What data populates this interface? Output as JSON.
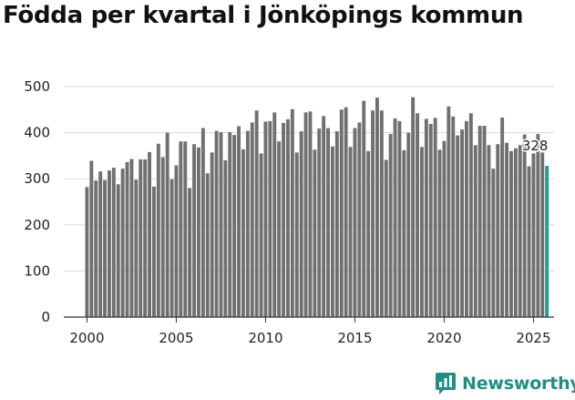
{
  "title": "Födda per kvartal i Jönköpings kommun",
  "brand": {
    "name": "Newsworthy",
    "color": "#1f8f85"
  },
  "chart_data": {
    "type": "bar",
    "title": "Födda per kvartal i Jönköpings kommun",
    "xlabel": "",
    "ylabel": "",
    "ylim": [
      0,
      500
    ],
    "yticks": [
      0,
      100,
      200,
      300,
      400,
      500
    ],
    "xticks": [
      2000,
      2005,
      2010,
      2015,
      2020,
      2025
    ],
    "grid": true,
    "bar_color": "#707070",
    "highlight_color": "#1f9c94",
    "annotation": {
      "label": "328",
      "index": 103
    },
    "categories": [
      "2000Q1",
      "2000Q2",
      "2000Q3",
      "2000Q4",
      "2001Q1",
      "2001Q2",
      "2001Q3",
      "2001Q4",
      "2002Q1",
      "2002Q2",
      "2002Q3",
      "2002Q4",
      "2003Q1",
      "2003Q2",
      "2003Q3",
      "2003Q4",
      "2004Q1",
      "2004Q2",
      "2004Q3",
      "2004Q4",
      "2005Q1",
      "2005Q2",
      "2005Q3",
      "2005Q4",
      "2006Q1",
      "2006Q2",
      "2006Q3",
      "2006Q4",
      "2007Q1",
      "2007Q2",
      "2007Q3",
      "2007Q4",
      "2008Q1",
      "2008Q2",
      "2008Q3",
      "2008Q4",
      "2009Q1",
      "2009Q2",
      "2009Q3",
      "2009Q4",
      "2010Q1",
      "2010Q2",
      "2010Q3",
      "2010Q4",
      "2011Q1",
      "2011Q2",
      "2011Q3",
      "2011Q4",
      "2012Q1",
      "2012Q2",
      "2012Q3",
      "2012Q4",
      "2013Q1",
      "2013Q2",
      "2013Q3",
      "2013Q4",
      "2014Q1",
      "2014Q2",
      "2014Q3",
      "2014Q4",
      "2015Q1",
      "2015Q2",
      "2015Q3",
      "2015Q4",
      "2016Q1",
      "2016Q2",
      "2016Q3",
      "2016Q4",
      "2017Q1",
      "2017Q2",
      "2017Q3",
      "2017Q4",
      "2018Q1",
      "2018Q2",
      "2018Q3",
      "2018Q4",
      "2019Q1",
      "2019Q2",
      "2019Q3",
      "2019Q4",
      "2020Q1",
      "2020Q2",
      "2020Q3",
      "2020Q4",
      "2021Q1",
      "2021Q2",
      "2021Q3",
      "2021Q4",
      "2022Q1",
      "2022Q2",
      "2022Q3",
      "2022Q4",
      "2023Q1",
      "2023Q2",
      "2023Q3",
      "2023Q4",
      "2024Q1",
      "2024Q2",
      "2024Q3",
      "2024Q4",
      "2025Q1",
      "2025Q2",
      "2025Q3",
      "2025Q4"
    ],
    "values": [
      282,
      339,
      296,
      316,
      297,
      318,
      324,
      288,
      322,
      336,
      343,
      298,
      342,
      342,
      358,
      283,
      376,
      347,
      400,
      299,
      329,
      381,
      381,
      280,
      375,
      368,
      410,
      312,
      357,
      404,
      401,
      340,
      401,
      395,
      414,
      364,
      404,
      422,
      448,
      355,
      424,
      425,
      444,
      381,
      421,
      429,
      451,
      357,
      403,
      444,
      446,
      363,
      409,
      436,
      410,
      370,
      403,
      450,
      455,
      369,
      410,
      422,
      469,
      360,
      448,
      476,
      448,
      341,
      397,
      431,
      425,
      362,
      400,
      477,
      442,
      369,
      430,
      419,
      432,
      363,
      382,
      457,
      435,
      394,
      407,
      425,
      442,
      373,
      415,
      415,
      373,
      322,
      375,
      433,
      378,
      360,
      366,
      373,
      396,
      327,
      355,
      397,
      357,
      328
    ]
  }
}
